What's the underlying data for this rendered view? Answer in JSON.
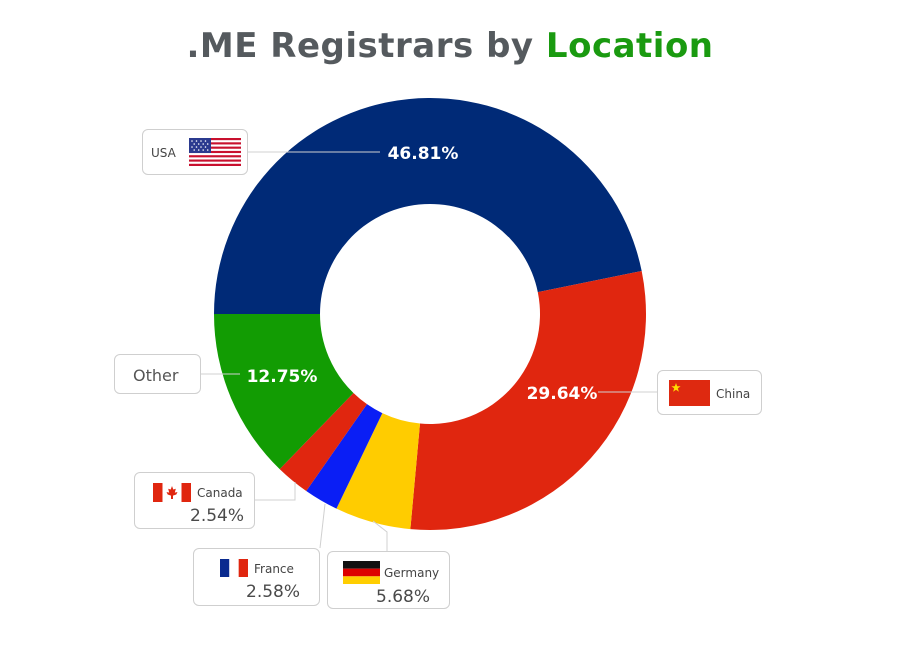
{
  "title": {
    "main": ".ME Registrars by",
    "accent": "Location",
    "accent_color": "#1a9a10"
  },
  "chart_data": {
    "type": "pie",
    "style": "donut",
    "title": ".ME Registrars by Location",
    "slices": [
      {
        "name": "USA",
        "value": 46.81,
        "label": "46.81%",
        "color": "#002a77",
        "flag_icon": "usa-flag-icon"
      },
      {
        "name": "China",
        "value": 29.64,
        "label": "29.64%",
        "color": "#e0260f",
        "flag_icon": "china-flag-icon"
      },
      {
        "name": "Germany",
        "value": 5.68,
        "label": "5.68%",
        "color": "#ffcc00",
        "flag_icon": "germany-flag-icon"
      },
      {
        "name": "France",
        "value": 2.58,
        "label": "2.58%",
        "color": "#0a1ef5",
        "flag_icon": "france-flag-icon"
      },
      {
        "name": "Canada",
        "value": 2.54,
        "label": "2.54%",
        "color": "#e0260f",
        "flag_icon": "canada-flag-icon"
      },
      {
        "name": "Other",
        "value": 12.75,
        "label": "12.75%",
        "color": "#129c03",
        "flag_icon": ""
      }
    ],
    "legend": "callouts"
  }
}
